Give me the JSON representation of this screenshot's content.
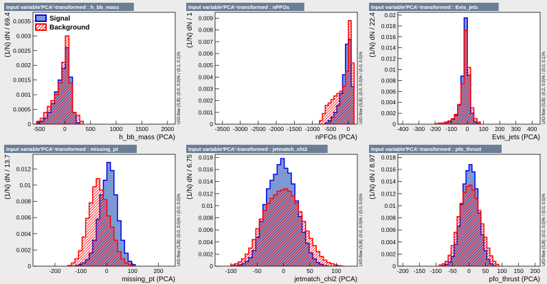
{
  "colors": {
    "background": "#ececec",
    "plot_bg": "#ffffff",
    "signal_fill": "#7d99d1",
    "signal_line": "#0000ee",
    "background_line": "#ff0000",
    "title_bg": "#6a7f96"
  },
  "legend": {
    "signal": "Signal",
    "background": "Background"
  },
  "chart_data": [
    {
      "type": "bar",
      "title": "Input variable'PCA'-transformed : h_bb_mass",
      "xlabel": "h_bb_mass (PCA)",
      "ylabel": "(1/N) dN / 69.4",
      "overflow": "U/O-flow (S,B): (0.0, 0.0)% / (0.1, 0.1)%",
      "xlim": [
        -620,
        2150
      ],
      "ylim": [
        0,
        0.0038
      ],
      "xticks": [
        -500,
        0,
        500,
        1000,
        1500,
        2000
      ],
      "yticks": [
        0,
        0.0005,
        0.001,
        0.0015,
        0.002,
        0.0025,
        0.003,
        0.0035
      ],
      "ytick_labels": [
        "0",
        "0.0005",
        "0.001",
        "0.0015",
        "0.002",
        "0.0025",
        "0.003",
        "0.0035"
      ],
      "xtick_labels": [
        "-500",
        "0",
        "500",
        "1000",
        "1500",
        "2000"
      ],
      "bin_edges": [
        -550,
        -480,
        -410,
        -340,
        -270,
        -200,
        -130,
        -60,
        10,
        80,
        150,
        220,
        290,
        360
      ],
      "signal": [
        5e-05,
        0.0001,
        0.0002,
        0.0004,
        0.0007,
        0.0011,
        0.0015,
        0.0019,
        0.0026,
        0.0016,
        0.0004,
        5e-05,
        0.0
      ],
      "background": [
        0.0001,
        0.0002,
        0.0004,
        0.0006,
        0.0008,
        0.001,
        0.0014,
        0.0021,
        0.003,
        0.0014,
        0.0004,
        0.0003,
        0.0001
      ],
      "show_legend": true
    },
    {
      "type": "bar",
      "title": "Input variable'PCA'-transformed : nPFOs",
      "xlabel": "nPFOs (PCA)",
      "ylabel": "(1/N) dN / 1",
      "overflow": "U/O-flow (S,B): (0.0, 0.0)% / (0.0, 0.0)%",
      "xlim": [
        -3700,
        250
      ],
      "ylim": [
        0,
        0.0095
      ],
      "xticks": [
        -3500,
        -3000,
        -2500,
        -2000,
        -1500,
        -1000,
        -500,
        0
      ],
      "yticks": [
        0,
        0.001,
        0.002,
        0.003,
        0.004,
        0.005,
        0.006,
        0.007,
        0.008,
        0.009
      ],
      "ytick_labels": [
        "0",
        "0.001",
        "0.002",
        "0.003",
        "0.004",
        "0.005",
        "0.006",
        "0.007",
        "0.008",
        "0.009"
      ],
      "xtick_labels": [
        "-3500",
        "-3000",
        "-2500",
        "-2000",
        "-1500",
        "-1000",
        "-500",
        "0"
      ],
      "bin_edges": [
        -800,
        -720,
        -640,
        -560,
        -480,
        -400,
        -320,
        -240,
        -160,
        -80,
        0,
        80,
        160
      ],
      "signal": [
        0.0,
        0.0,
        0.0001,
        0.0003,
        0.0006,
        0.001,
        0.0016,
        0.0026,
        0.0042,
        0.0068,
        0.0072,
        0.0032
      ],
      "background": [
        0.0003,
        0.0009,
        0.0016,
        0.0018,
        0.0021,
        0.0024,
        0.0026,
        0.0028,
        0.0032,
        0.0045,
        0.0088,
        0.0052
      ],
      "show_legend": false
    },
    {
      "type": "bar",
      "title": "Input variable'PCA'-transformed : Evis_jets",
      "xlabel": "Evis_jets (PCA)",
      "ylabel": "(1/N) dN / 22.4",
      "overflow": "U/O-flow (S,B): (0.2, 0.0)% / (0.0, 0.1)%",
      "xlim": [
        -430,
        450
      ],
      "ylim": [
        0,
        0.0205
      ],
      "xticks": [
        -400,
        -300,
        -200,
        -100,
        0,
        100,
        200,
        300,
        400
      ],
      "yticks": [
        0,
        0.002,
        0.004,
        0.006,
        0.008,
        0.01,
        0.012,
        0.014,
        0.016,
        0.018,
        0.02
      ],
      "ytick_labels": [
        "0",
        "0.002",
        "0.004",
        "0.006",
        "0.008",
        "0.01",
        "0.012",
        "0.014",
        "0.016",
        "0.018",
        "0.02"
      ],
      "xtick_labels": [
        "-400",
        "-300",
        "-200",
        "-100",
        "0",
        "100",
        "200",
        "300",
        "400"
      ],
      "bin_edges": [
        -200,
        -180,
        -160,
        -140,
        -120,
        -100,
        -80,
        -60,
        -40,
        -20,
        0,
        20,
        40,
        60,
        80
      ],
      "signal": [
        0.0,
        0.0001,
        0.0002,
        0.0003,
        0.0005,
        0.0009,
        0.0016,
        0.0035,
        0.0088,
        0.0195,
        0.009,
        0.002,
        0.0004,
        0.0001
      ],
      "background": [
        0.0001,
        0.0002,
        0.0002,
        0.0004,
        0.0006,
        0.001,
        0.0018,
        0.0036,
        0.0074,
        0.0172,
        0.0104,
        0.003,
        0.001,
        0.0004
      ],
      "show_legend": false
    },
    {
      "type": "bar",
      "title": "Input variable'PCA'-transformed : missing_pt",
      "xlabel": "missing_pt (PCA)",
      "ylabel": "(1/N) dN / 13.7",
      "overflow": "U/O-flow (S,B): (0.0, 0.0)% / (0.0, 0.0)%",
      "xlim": [
        -285,
        265
      ],
      "ylim": [
        0,
        0.0138
      ],
      "xticks": [
        -200,
        -100,
        0,
        100,
        200
      ],
      "yticks": [
        0,
        0.002,
        0.004,
        0.006,
        0.008,
        0.01,
        0.012
      ],
      "ytick_labels": [
        "0",
        "0.002",
        "0.004",
        "0.006",
        "0.008",
        "0.01",
        "0.012"
      ],
      "xtick_labels": [
        "-200",
        "-100",
        "0",
        "100",
        "200"
      ],
      "bin_edges": [
        -150,
        -136.3,
        -122.6,
        -108.9,
        -95.2,
        -81.5,
        -67.8,
        -54.1,
        -40.4,
        -26.7,
        -13,
        0.7,
        14.4,
        28.1,
        41.8,
        55.5,
        69.2,
        82.9,
        96.6,
        110.3
      ],
      "signal": [
        0.0,
        0.0,
        0.0001,
        0.0002,
        0.0004,
        0.0008,
        0.0016,
        0.0032,
        0.0058,
        0.0088,
        0.0106,
        0.0128,
        0.0118,
        0.0088,
        0.0056,
        0.0032,
        0.0016,
        0.0006,
        0.0002
      ],
      "background": [
        0.0001,
        0.0004,
        0.0009,
        0.0019,
        0.0036,
        0.0059,
        0.0078,
        0.0098,
        0.0108,
        0.0094,
        0.0082,
        0.0062,
        0.0048,
        0.0032,
        0.0018,
        0.0009,
        0.0004,
        0.0002,
        0.0
      ],
      "show_legend": false
    },
    {
      "type": "bar",
      "title": "Input variable'PCA'-transformed : jetmatch_chi2",
      "xlabel": "jetmatch_chi2 (PCA)",
      "ylabel": "(1/N) dN / 6.75",
      "overflow": "U/O-flow (S,B): (0.0, 0.0)% / (0.0, 0.0)%",
      "xlim": [
        -130,
        140
      ],
      "ylim": [
        0,
        0.0185
      ],
      "xticks": [
        -100,
        -50,
        0,
        50,
        100
      ],
      "yticks": [
        0,
        0.002,
        0.004,
        0.006,
        0.008,
        0.01,
        0.012,
        0.014,
        0.016,
        0.018
      ],
      "ytick_labels": [
        "0",
        "0.002",
        "0.004",
        "0.006",
        "0.008",
        "0.01",
        "0.012",
        "0.014",
        "0.016",
        "0.018"
      ],
      "xtick_labels": [
        "-100",
        "-50",
        "0",
        "50",
        "100"
      ],
      "bin_edges": [
        -100,
        -93.25,
        -86.5,
        -79.75,
        -73,
        -66.25,
        -59.5,
        -52.75,
        -46,
        -39.25,
        -32.5,
        -25.75,
        -19,
        -12.25,
        -5.5,
        1.25,
        8,
        14.75,
        21.5,
        28.25,
        35,
        41.75,
        48.5,
        55.25,
        62,
        68.75,
        75.5,
        82.25,
        89,
        95.75,
        102.5,
        109.25,
        116
      ],
      "signal": [
        0.0,
        0.0001,
        0.0002,
        0.0004,
        0.0008,
        0.0014,
        0.0026,
        0.0048,
        0.0074,
        0.0102,
        0.0128,
        0.0142,
        0.0152,
        0.0168,
        0.0178,
        0.0162,
        0.0154,
        0.0136,
        0.0108,
        0.0082,
        0.0056,
        0.0038,
        0.0022,
        0.0012,
        0.0006,
        0.0003,
        0.0001,
        0.0,
        0.0,
        0.0,
        0.0,
        0.0
      ],
      "background": [
        0.0002,
        0.0004,
        0.0007,
        0.0012,
        0.002,
        0.003,
        0.0044,
        0.0062,
        0.0078,
        0.0092,
        0.0104,
        0.0112,
        0.0118,
        0.0124,
        0.0126,
        0.0128,
        0.0124,
        0.0116,
        0.0104,
        0.009,
        0.0074,
        0.0058,
        0.0046,
        0.0034,
        0.0024,
        0.0016,
        0.001,
        0.0006,
        0.0004,
        0.0002,
        0.0001,
        0.0
      ],
      "show_legend": false
    },
    {
      "type": "bar",
      "title": "Input variable'PCA'-transformed : pfo_thrust",
      "xlabel": "pfo_thrust (PCA)",
      "ylabel": "(1/N) dN / 8.97",
      "overflow": "U/O-flow (S,B): (0.0, 0.0)% / (0.0, 0.0)%",
      "xlim": [
        -215,
        215
      ],
      "ylim": [
        0,
        0.0185
      ],
      "xticks": [
        -200,
        -150,
        -100,
        -50,
        0,
        50,
        100,
        150,
        200
      ],
      "yticks": [
        0,
        0.002,
        0.004,
        0.006,
        0.008,
        0.01,
        0.012,
        0.014,
        0.016,
        0.018
      ],
      "ytick_labels": [
        "0",
        "0.002",
        "0.004",
        "0.006",
        "0.008",
        "0.01",
        "0.012",
        "0.014",
        "0.016",
        "0.018"
      ],
      "xtick_labels": [
        "-200",
        "-150",
        "-100",
        "-50",
        "0",
        "50",
        "100",
        "150",
        "200"
      ],
      "bin_edges": [
        -90,
        -81,
        -72,
        -63,
        -54,
        -45,
        -36,
        -27,
        -18,
        -9,
        0,
        9,
        18,
        27,
        36,
        45,
        54,
        63,
        72,
        81,
        90
      ],
      "signal": [
        0.0,
        0.0001,
        0.0003,
        0.0007,
        0.0016,
        0.0036,
        0.0066,
        0.0102,
        0.0136,
        0.0158,
        0.0168,
        0.0156,
        0.0128,
        0.0088,
        0.0052,
        0.0026,
        0.0011,
        0.0004,
        0.0001,
        0.0
      ],
      "background": [
        0.0002,
        0.0004,
        0.0008,
        0.0018,
        0.0034,
        0.0056,
        0.0082,
        0.0104,
        0.0122,
        0.0132,
        0.0134,
        0.0126,
        0.0112,
        0.0092,
        0.007,
        0.0048,
        0.003,
        0.0017,
        0.0008,
        0.0003
      ],
      "show_legend": false
    }
  ]
}
